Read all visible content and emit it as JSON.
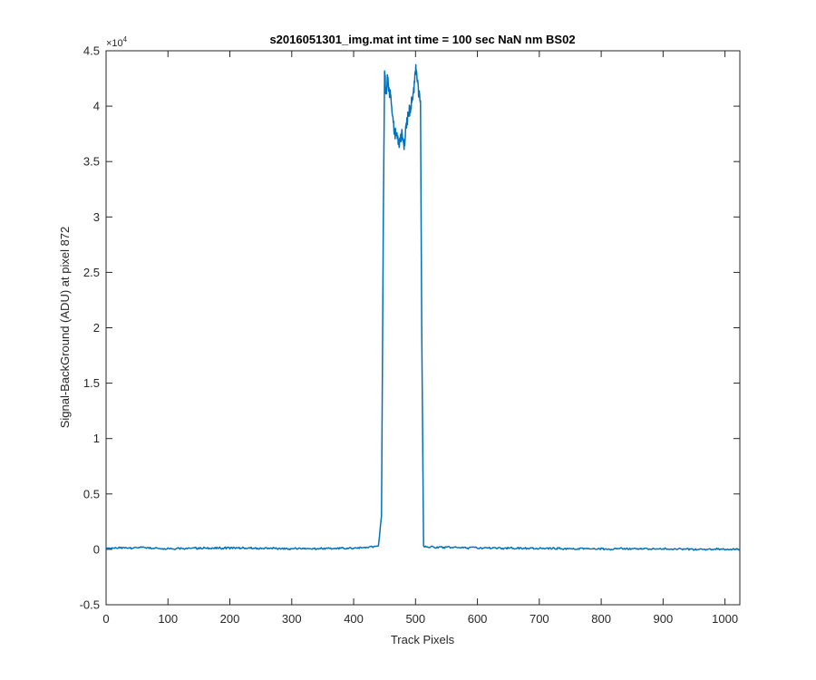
{
  "chart_data": {
    "type": "line",
    "title": "s2016051301_img.mat int time = 100 sec  NaN nm BS02",
    "xlabel": "Track Pixels",
    "ylabel": "Signal-BackGround (ADU) at pixel 872",
    "xlim": [
      0,
      1024
    ],
    "ylim": [
      -5000,
      45000
    ],
    "y_scale_multiplier": "×10",
    "y_scale_exponent": "4",
    "x_ticks": [
      0,
      100,
      200,
      300,
      400,
      500,
      600,
      700,
      800,
      900,
      1000
    ],
    "x_tick_labels": [
      "0",
      "100",
      "200",
      "300",
      "400",
      "500",
      "600",
      "700",
      "800",
      "900",
      "1000"
    ],
    "y_ticks": [
      -5000,
      0,
      5000,
      10000,
      15000,
      20000,
      25000,
      30000,
      35000,
      40000,
      45000
    ],
    "y_tick_labels": [
      "-0.5",
      "0",
      "0.5",
      "1",
      "1.5",
      "2",
      "2.5",
      "3",
      "3.5",
      "4",
      "4.5"
    ],
    "grid": false,
    "legend": "none",
    "line_color": "#0072BD",
    "series": [
      {
        "x": [
          0,
          50,
          100,
          200,
          300,
          400,
          440,
          445,
          448,
          450,
          452,
          455,
          458,
          460,
          463,
          466,
          470,
          474,
          478,
          481,
          485,
          490,
          495,
          498,
          500,
          502,
          505,
          508,
          510,
          513,
          520,
          600,
          700,
          800,
          900,
          1024
        ],
        "y": [
          100,
          150,
          80,
          120,
          60,
          100,
          300,
          3000,
          30000,
          43700,
          41000,
          42500,
          41000,
          40800,
          39000,
          37500,
          37200,
          36600,
          37600,
          36200,
          38200,
          39500,
          40500,
          42000,
          43500,
          42800,
          41200,
          40500,
          20000,
          300,
          200,
          120,
          80,
          50,
          30,
          0
        ]
      }
    ]
  }
}
